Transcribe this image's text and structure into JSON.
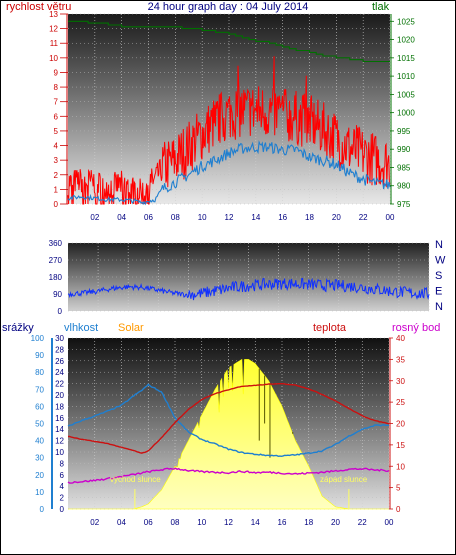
{
  "title": "24 hour graph day : 04 July 2014",
  "colors": {
    "wind": "#ff0000",
    "gust": "#1f7fd0",
    "pressure": "#007000",
    "direction": "#1030ff",
    "humidity": "#1f7fd0",
    "solar": "#ffff40",
    "temperature": "#cc1010",
    "dewpoint": "#cc00cc",
    "rain": "#1f7fd0",
    "frame": "#000000",
    "label_dark": "#000080",
    "solar_label": "#ff9900"
  },
  "top_panel": {
    "left_label": "rychlost větru",
    "right_label": "tlak",
    "left_ticks": [
      "0",
      "1",
      "2",
      "3",
      "4",
      "5",
      "6",
      "7",
      "8",
      "9",
      "10",
      "11",
      "12",
      "13"
    ],
    "right_ticks": [
      "975",
      "980",
      "985",
      "990",
      "995",
      "1000",
      "1005",
      "1010",
      "1015",
      "1020",
      "1025"
    ],
    "x_ticks": [
      "02",
      "04",
      "06",
      "08",
      "10",
      "12",
      "14",
      "16",
      "18",
      "20",
      "22",
      "00"
    ]
  },
  "middle_panel": {
    "left_ticks": [
      "0",
      "90",
      "180",
      "270",
      "360"
    ],
    "right_letters": [
      "N",
      "W",
      "S",
      "E",
      "N"
    ],
    "x_ticks": []
  },
  "bottom_panel": {
    "rain_label": "srážky",
    "humidity_label": "vlhkost",
    "solar_label": "Solar",
    "temperature_label": "teplota",
    "dewpoint_label": "rosný bod",
    "rain_ticks": [
      "0",
      "10",
      "20",
      "30",
      "40",
      "50",
      "60",
      "70",
      "80",
      "90",
      "100"
    ],
    "humidity_ticks": [
      "0",
      "2",
      "4",
      "6",
      "8",
      "10",
      "12",
      "14",
      "16",
      "18",
      "20",
      "22",
      "24",
      "26",
      "28",
      "30"
    ],
    "temp_ticks": [
      "0",
      "5",
      "10",
      "15",
      "20",
      "25",
      "30",
      "35",
      "40"
    ],
    "sunrise_label": "východ slunce",
    "sunset_label": "západ slunce",
    "x_ticks": [
      "02",
      "04",
      "06",
      "08",
      "10",
      "12",
      "14",
      "16",
      "18",
      "20",
      "22",
      "00"
    ]
  },
  "chart_data": [
    {
      "type": "line",
      "title": "24 hour graph day : 04 July 2014",
      "x_unit": "hour",
      "xlim": [
        0,
        24
      ],
      "series": [
        {
          "name": "rychlost větru",
          "axis": "left",
          "ylim": [
            0,
            13
          ],
          "x": [
            0,
            1,
            2,
            3,
            4,
            5,
            5.5,
            6,
            6.5,
            7,
            8,
            9,
            10,
            11,
            12,
            13,
            14,
            15,
            16,
            17,
            18,
            19,
            20,
            21,
            22,
            23,
            24
          ],
          "y": [
            1.5,
            1.6,
            1.5,
            1.2,
            1.4,
            1.0,
            0.8,
            1.5,
            1.7,
            2.4,
            3.0,
            3.9,
            4.8,
            5.6,
            6.2,
            6.4,
            6.4,
            6.3,
            6.1,
            5.9,
            5.6,
            5.1,
            4.5,
            3.8,
            3.4,
            3.0,
            2.8
          ]
        },
        {
          "name": "",
          "axis": "left",
          "ylim": [
            0,
            13
          ],
          "x": [
            0,
            1,
            2,
            3,
            4,
            5,
            5.5,
            6,
            6.5,
            7,
            8,
            9,
            10,
            11,
            12,
            13,
            14,
            15,
            16,
            17,
            18,
            19,
            20,
            21,
            22,
            23,
            24
          ],
          "y": [
            0.4,
            0.5,
            0.4,
            0.3,
            0.3,
            0.2,
            0.1,
            0.2,
            0.3,
            1.0,
            1.5,
            2.0,
            2.6,
            3.0,
            3.5,
            3.8,
            3.9,
            3.9,
            3.7,
            3.7,
            3.2,
            3.0,
            2.7,
            2.1,
            1.7,
            1.4,
            1.3
          ]
        },
        {
          "name": "tlak",
          "axis": "right",
          "ylim": [
            975,
            1027
          ],
          "x": [
            0,
            1,
            2,
            3,
            4,
            5,
            6,
            7,
            8,
            9,
            10,
            11,
            12,
            13,
            14,
            15,
            16,
            17,
            18,
            19,
            20,
            21,
            22,
            23,
            24
          ],
          "y": [
            1025,
            1024.8,
            1024.5,
            1024.1,
            1023.7,
            1023.5,
            1023.5,
            1023.4,
            1023.3,
            1023.1,
            1022.6,
            1022.1,
            1021.5,
            1020.5,
            1019.7,
            1018.9,
            1018.0,
            1017.2,
            1016.3,
            1015.5,
            1015.0,
            1014.5,
            1014.2,
            1014.0,
            1014.0
          ]
        }
      ]
    },
    {
      "type": "line",
      "x_unit": "hour",
      "xlim": [
        0,
        24
      ],
      "ylim": [
        0,
        360
      ],
      "series": [
        {
          "name": "",
          "x": [
            0,
            1,
            2,
            3,
            4,
            5,
            6,
            7,
            8,
            9,
            10,
            11,
            12,
            13,
            14,
            15,
            16,
            17,
            18,
            19,
            20,
            21,
            22,
            23,
            24
          ],
          "y": [
            90,
            95,
            105,
            120,
            128,
            125,
            110,
            95,
            85,
            95,
            110,
            125,
            135,
            140,
            145,
            145,
            140,
            135,
            135,
            130,
            120,
            110,
            100,
            95,
            90
          ]
        }
      ]
    },
    {
      "type": "area",
      "x_unit": "hour",
      "xlim": [
        0,
        24
      ],
      "series": [
        {
          "name": "Solar",
          "axis": "temp",
          "ylim": [
            0,
            40
          ],
          "x": [
            0,
            4.9,
            5.5,
            6,
            7,
            8,
            9,
            10,
            11,
            12,
            13,
            13.5,
            14,
            15,
            16,
            17,
            18,
            19,
            20,
            21,
            24
          ],
          "y": [
            0,
            0,
            0.5,
            1.2,
            4.5,
            10,
            16,
            22,
            28,
            33,
            35,
            35,
            34,
            30,
            24,
            16,
            10,
            3,
            0.5,
            0,
            0
          ]
        },
        {
          "name": "vlhkost",
          "axis": "humidity",
          "ylim": [
            0,
            30
          ],
          "x": [
            0,
            1,
            2,
            3,
            4,
            5,
            5.5,
            6,
            7,
            8,
            9,
            10,
            11,
            12,
            13,
            14,
            15,
            16,
            17,
            18,
            19,
            20,
            21,
            22,
            23,
            24
          ],
          "y": [
            14.5,
            15.5,
            16.3,
            17.2,
            18.2,
            20.0,
            20.8,
            21.8,
            20.5,
            16.0,
            13.5,
            12.2,
            11.4,
            10.5,
            9.9,
            9.6,
            9.4,
            9.3,
            9.5,
            9.8,
            10.2,
            11.3,
            12.8,
            14.0,
            14.7,
            14.7
          ]
        },
        {
          "name": "teplota",
          "axis": "temp",
          "ylim": [
            0,
            40
          ],
          "x": [
            0,
            1,
            2,
            3,
            4,
            5,
            5.5,
            6,
            7,
            8,
            9,
            10,
            11,
            12,
            13,
            14,
            15,
            16,
            17,
            18,
            19,
            20,
            21,
            22,
            23,
            24
          ],
          "y": [
            17,
            16.3,
            15.8,
            15.3,
            14.4,
            13.6,
            13.0,
            13.6,
            16.7,
            20.2,
            23.3,
            25.6,
            27.0,
            27.9,
            28.7,
            28.9,
            29.2,
            29.3,
            29.0,
            28.1,
            26.8,
            25.3,
            23.5,
            21.8,
            20.6,
            20.0
          ]
        },
        {
          "name": "rosný bod",
          "axis": "temp",
          "ylim": [
            0,
            40
          ],
          "x": [
            0,
            1,
            2,
            3,
            4,
            5,
            6,
            7,
            8,
            9,
            10,
            11,
            12,
            13,
            14,
            15,
            16,
            17,
            18,
            19,
            20,
            21,
            22,
            23,
            24
          ],
          "y": [
            6.2,
            6.4,
            6.7,
            7.1,
            7.6,
            8.1,
            8.7,
            9.2,
            9.5,
            9.0,
            8.7,
            8.6,
            8.5,
            8.8,
            8.5,
            8.6,
            8.4,
            8.2,
            8.4,
            8.6,
            8.9,
            9.3,
            9.4,
            9.1,
            9.0
          ]
        }
      ]
    }
  ]
}
